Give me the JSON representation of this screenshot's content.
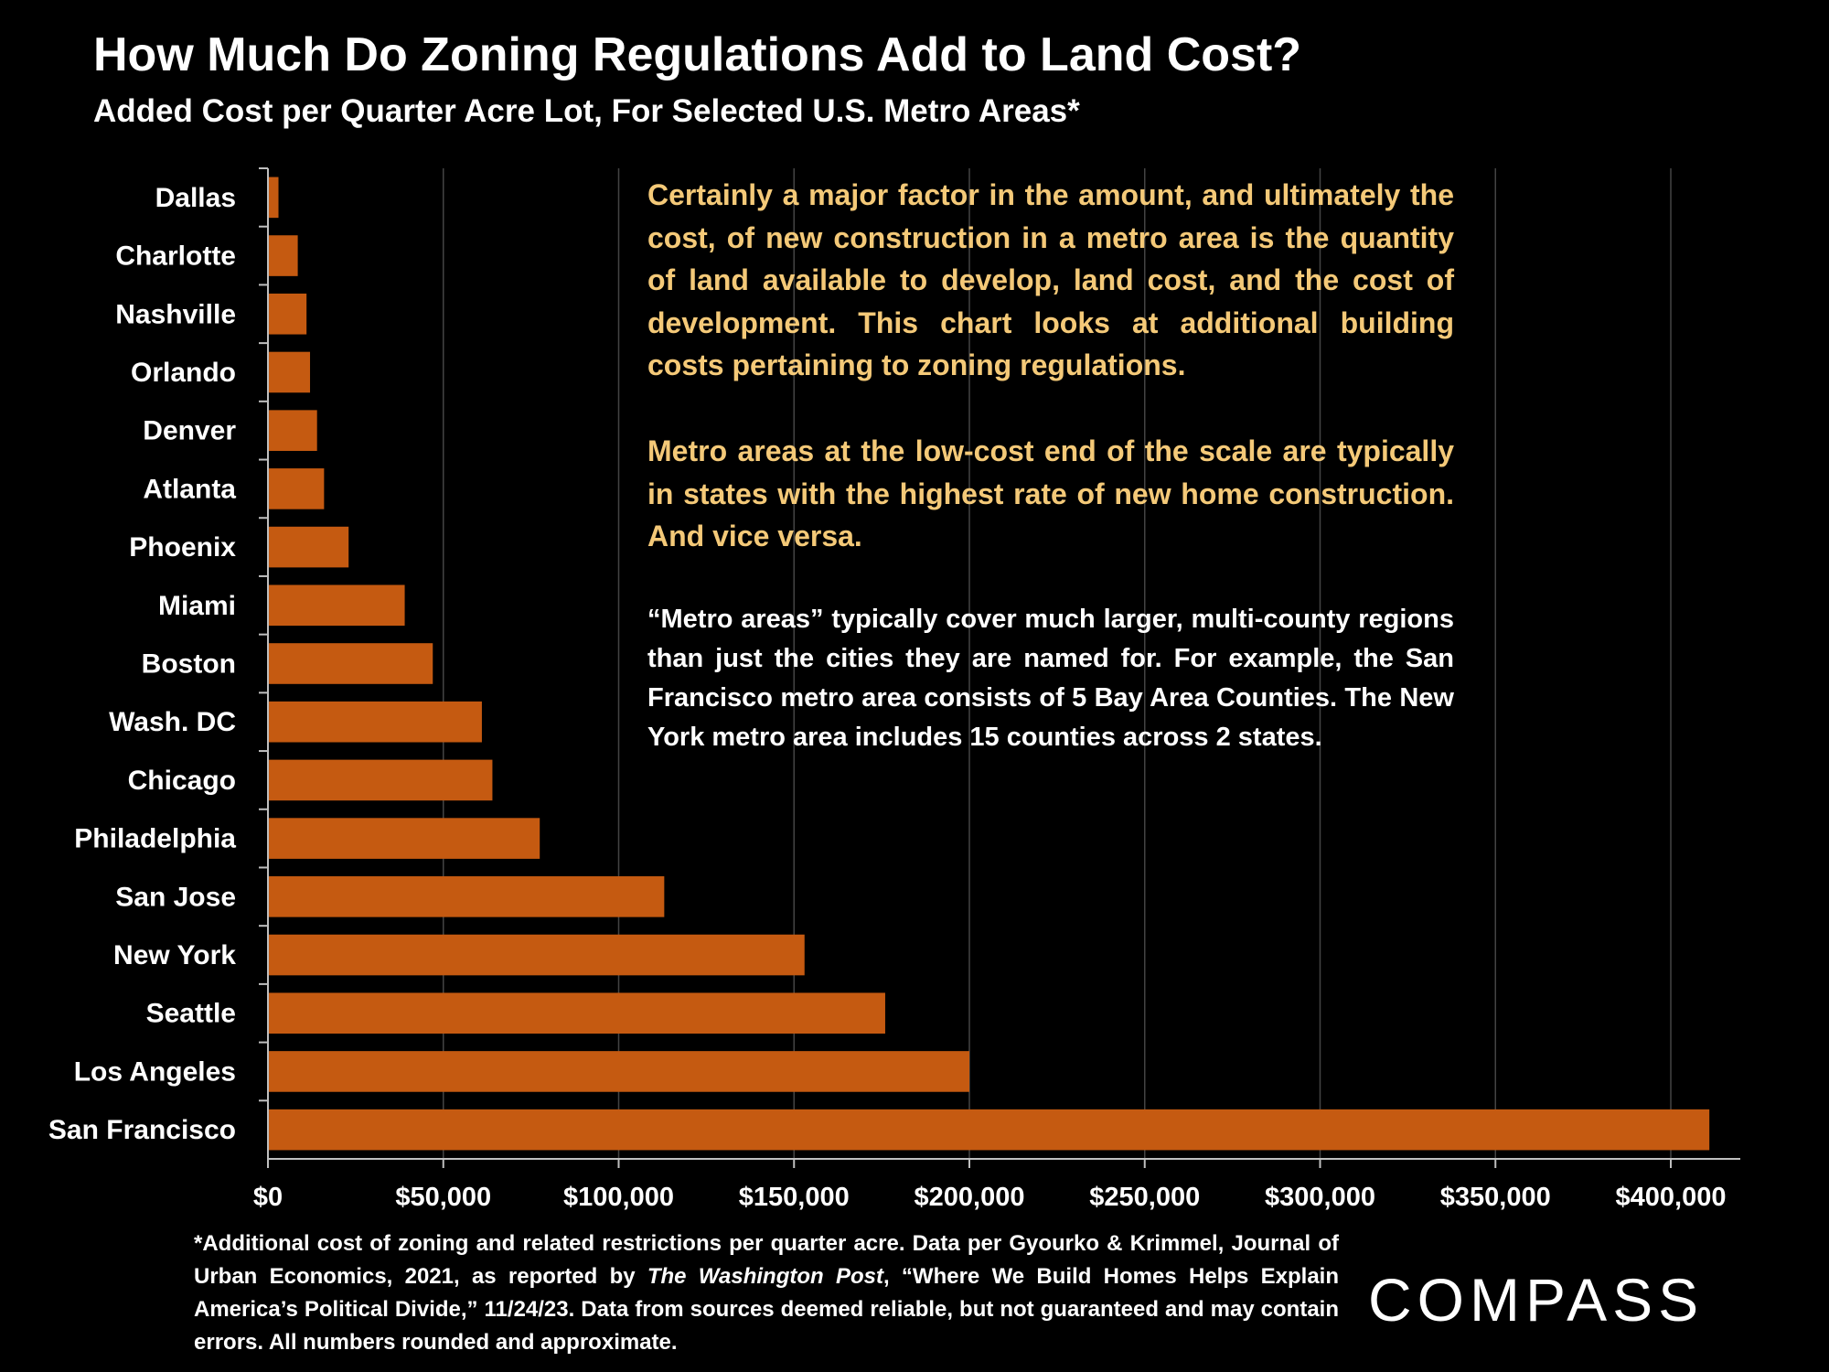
{
  "header": {
    "title": "How Much Do Zoning Regulations Add to Land Cost?",
    "subtitle": "Added Cost per Quarter Acre Lot, For Selected U.S. Metro Areas*"
  },
  "commentary": {
    "para1": "Certainly a major factor in the amount, and ultimately the cost, of new construction in a metro area is the quantity of land available to develop, land cost, and the cost of development. This chart looks at additional building costs pertaining to zoning regulations.",
    "para2": "Metro areas at the low-cost end of the scale are typically in states with the highest rate of new home construction. And vice versa.",
    "para3": "“Metro areas” typically cover much larger, multi-county regions than just the cities they are named for. For example, the San Francisco metro area consists of 5 Bay Area Counties. The New York metro area includes 15 counties across 2 states."
  },
  "footnote": {
    "before": "*Additional cost of zoning and related restrictions per quarter acre. Data per Gyourko & Krimmel, Journal of Urban Economics, 2021, as reported by ",
    "publication": "The Washington Post",
    "after": ", “Where We Build Homes Helps Explain America’s Political Divide,” 11/24/23. Data from sources deemed reliable, but not guaranteed and may contain errors. All numbers rounded and approximate."
  },
  "logo": "COMPASS",
  "colors": {
    "bar": "#c55a11",
    "commentary": "#f4c978",
    "background": "#000000",
    "gridline": "#444444"
  },
  "chart_data": {
    "type": "bar",
    "orientation": "horizontal",
    "title": "How Much Do Zoning Regulations Add to Land Cost?",
    "subtitle": "Added Cost per Quarter Acre Lot, For Selected U.S. Metro Areas*",
    "categories": [
      "Dallas",
      "Charlotte",
      "Nashville",
      "Orlando",
      "Denver",
      "Atlanta",
      "Phoenix",
      "Miami",
      "Boston",
      "Wash. DC",
      "Chicago",
      "Philadelphia",
      "San Jose",
      "New York",
      "Seattle",
      "Los Angeles",
      "San Francisco"
    ],
    "values": [
      3000,
      8500,
      11000,
      12000,
      14000,
      16000,
      23000,
      39000,
      47000,
      61000,
      64000,
      77500,
      113000,
      153000,
      176000,
      200000,
      411000
    ],
    "xlim": [
      0,
      420000
    ],
    "ticks": [
      0,
      50000,
      100000,
      150000,
      200000,
      250000,
      300000,
      350000,
      400000
    ],
    "tick_labels": [
      "$0",
      "$50,000",
      "$100,000",
      "$150,000",
      "$200,000",
      "$250,000",
      "$300,000",
      "$350,000",
      "$400,000"
    ],
    "xlabel": "",
    "ylabel": "",
    "grid": "vertical gridlines",
    "legend": "none"
  }
}
